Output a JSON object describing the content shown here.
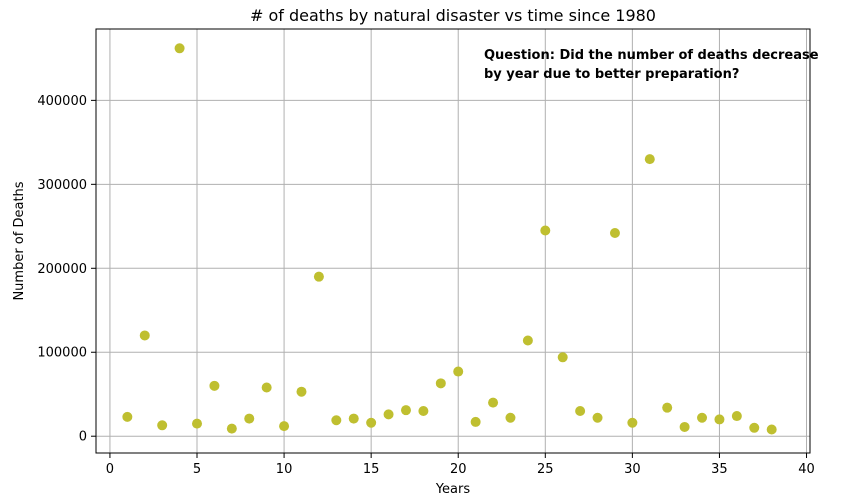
{
  "chart_data": {
    "type": "scatter",
    "title": "# of deaths by natural disaster vs time since 1980",
    "xlabel": "Years",
    "ylabel": "Number of Deaths",
    "xlim": [
      -0.8,
      40.2
    ],
    "ylim": [
      -20000,
      485000
    ],
    "xticks": [
      0,
      5,
      10,
      15,
      20,
      25,
      30,
      35,
      40
    ],
    "yticks": [
      0,
      100000,
      200000,
      300000,
      400000
    ],
    "grid": true,
    "marker_color": "#bfbf30",
    "annotation": [
      "Question: Did the number of deaths decrease",
      "by year due to better preparation?"
    ],
    "points": [
      {
        "x": 1,
        "y": 23000
      },
      {
        "x": 2,
        "y": 120000
      },
      {
        "x": 3,
        "y": 13000
      },
      {
        "x": 4,
        "y": 462000
      },
      {
        "x": 5,
        "y": 15000
      },
      {
        "x": 6,
        "y": 60000
      },
      {
        "x": 7,
        "y": 9000
      },
      {
        "x": 8,
        "y": 21000
      },
      {
        "x": 9,
        "y": 58000
      },
      {
        "x": 10,
        "y": 12000
      },
      {
        "x": 11,
        "y": 53000
      },
      {
        "x": 12,
        "y": 190000
      },
      {
        "x": 13,
        "y": 19000
      },
      {
        "x": 14,
        "y": 21000
      },
      {
        "x": 15,
        "y": 16000
      },
      {
        "x": 16,
        "y": 26000
      },
      {
        "x": 17,
        "y": 31000
      },
      {
        "x": 18,
        "y": 30000
      },
      {
        "x": 19,
        "y": 63000
      },
      {
        "x": 20,
        "y": 77000
      },
      {
        "x": 21,
        "y": 17000
      },
      {
        "x": 22,
        "y": 40000
      },
      {
        "x": 23,
        "y": 22000
      },
      {
        "x": 24,
        "y": 114000
      },
      {
        "x": 25,
        "y": 245000
      },
      {
        "x": 26,
        "y": 94000
      },
      {
        "x": 27,
        "y": 30000
      },
      {
        "x": 28,
        "y": 22000
      },
      {
        "x": 29,
        "y": 242000
      },
      {
        "x": 30,
        "y": 16000
      },
      {
        "x": 31,
        "y": 330000
      },
      {
        "x": 32,
        "y": 34000
      },
      {
        "x": 33,
        "y": 11000
      },
      {
        "x": 34,
        "y": 22000
      },
      {
        "x": 35,
        "y": 20000
      },
      {
        "x": 36,
        "y": 24000
      },
      {
        "x": 37,
        "y": 10000
      },
      {
        "x": 38,
        "y": 8000
      }
    ]
  }
}
